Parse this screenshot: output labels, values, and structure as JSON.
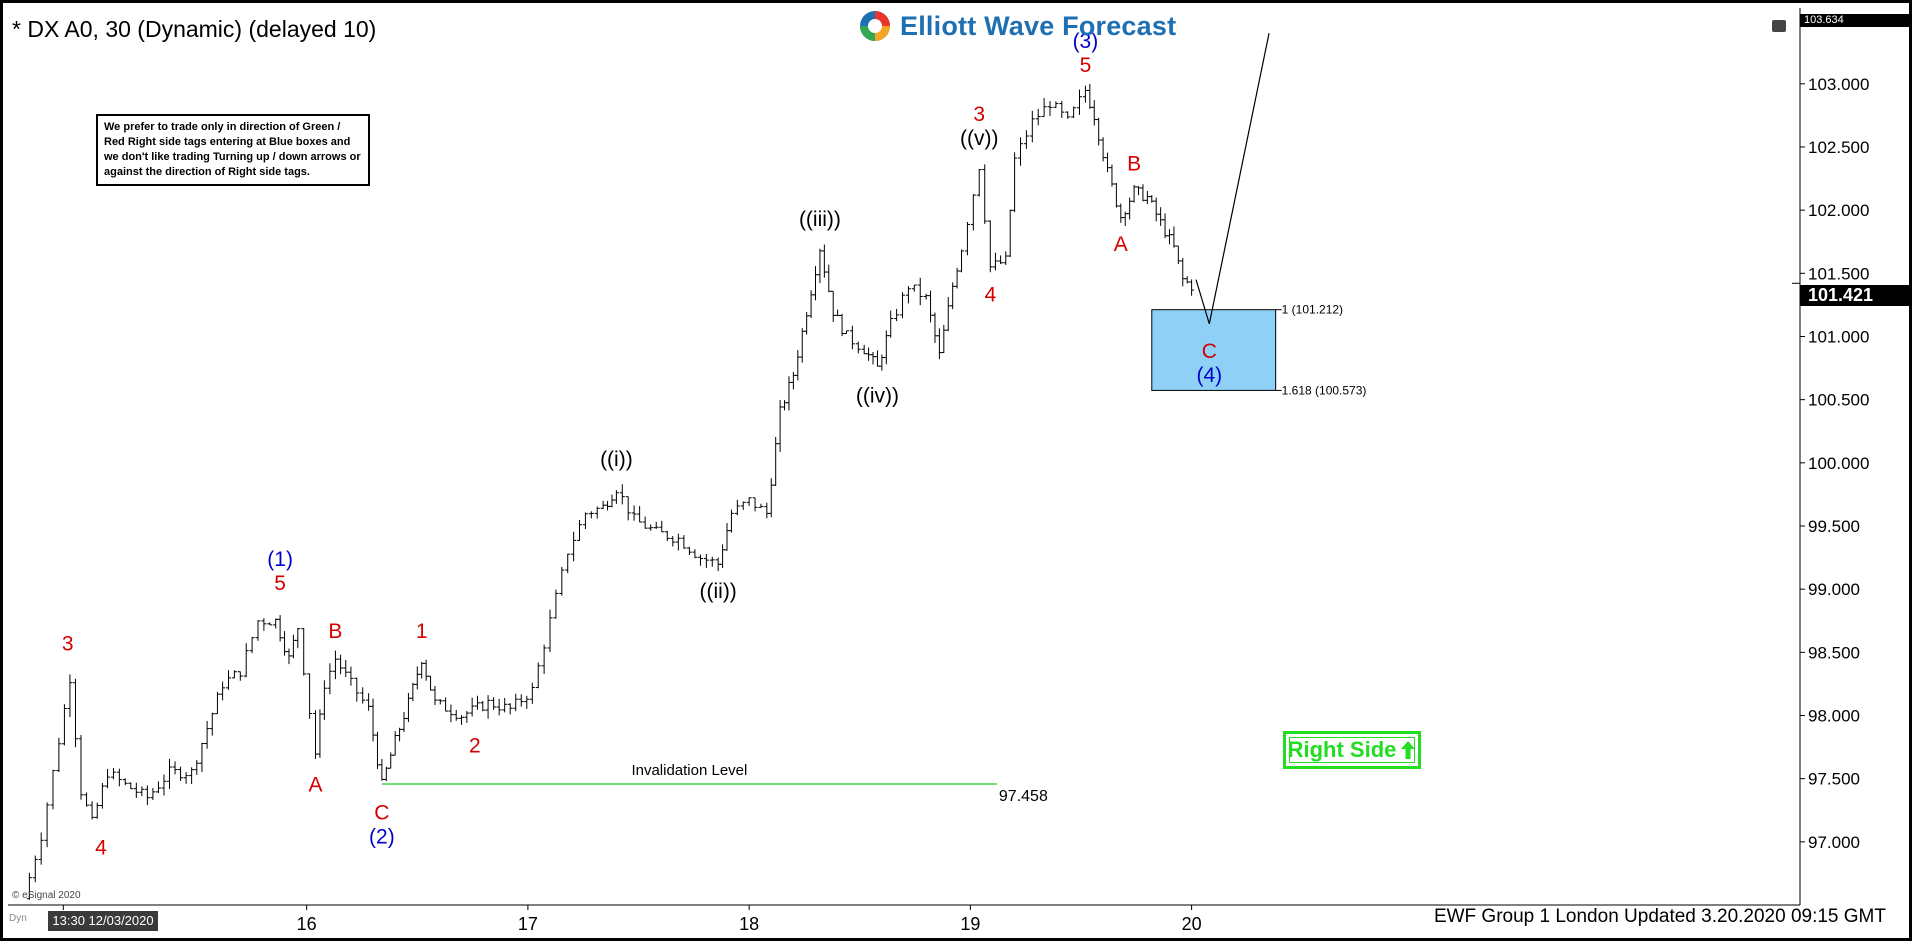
{
  "header": {
    "symbol": "* DX A0, 30 (Dynamic) (delayed 10)",
    "logo_text": "Elliott Wave Forecast"
  },
  "note": "We prefer to trade only in direction of Green / Red Right side tags entering at Blue boxes and we don't like trading Turning up / down arrows or against the direction of Right side tags.",
  "right_side_label": "Right Side",
  "footer": "EWF Group 1 London Updated 3.20.2020 09:15 GMT",
  "timestamp": "13:30 12/03/2020",
  "esignal": "© eSignal 2020",
  "dyn": "Dyn",
  "last_price": "101.421",
  "top_price": "103.634",
  "colors": {
    "wave_red": "#d40000",
    "wave_blue": "#0000cc",
    "wave_black": "#000000",
    "invalidation": "#22cc22",
    "blue_box": "#8fd0f7",
    "right_side": "#22dd22"
  },
  "chart_data": {
    "type": "bar",
    "subtype": "ohlc",
    "xlim": [
      12.55,
      20.65
    ],
    "ylim": [
      96.5,
      103.6
    ],
    "ticks_y": [
      "97.000",
      "97.500",
      "98.000",
      "98.500",
      "99.000",
      "99.500",
      "100.000",
      "100.500",
      "101.000",
      "101.500",
      "102.000",
      "102.500",
      "103.000",
      "103.500"
    ],
    "ticks_x": [
      {
        "label": "13",
        "x": 12.8
      },
      {
        "label": "16",
        "x": 13.9
      },
      {
        "label": "17",
        "x": 14.9
      },
      {
        "label": "18",
        "x": 15.9
      },
      {
        "label": "19",
        "x": 16.9
      },
      {
        "label": "20",
        "x": 17.9
      }
    ],
    "price_path": [
      [
        12.62,
        96.55
      ],
      [
        12.7,
        97.05
      ],
      [
        12.78,
        97.8
      ],
      [
        12.83,
        98.3
      ],
      [
        12.88,
        97.4
      ],
      [
        12.93,
        97.15
      ],
      [
        13.0,
        97.55
      ],
      [
        13.08,
        97.45
      ],
      [
        13.18,
        97.35
      ],
      [
        13.28,
        97.55
      ],
      [
        13.38,
        97.55
      ],
      [
        13.45,
        97.9
      ],
      [
        13.52,
        98.25
      ],
      [
        13.6,
        98.35
      ],
      [
        13.68,
        98.75
      ],
      [
        13.76,
        98.75
      ],
      [
        13.82,
        98.45
      ],
      [
        13.86,
        98.7
      ],
      [
        13.94,
        97.7
      ],
      [
        13.98,
        98.25
      ],
      [
        14.03,
        98.45
      ],
      [
        14.1,
        98.25
      ],
      [
        14.18,
        98.05
      ],
      [
        14.24,
        97.45
      ],
      [
        14.3,
        97.8
      ],
      [
        14.36,
        98.1
      ],
      [
        14.42,
        98.45
      ],
      [
        14.48,
        98.1
      ],
      [
        14.6,
        98.0
      ],
      [
        14.72,
        98.1
      ],
      [
        14.82,
        98.05
      ],
      [
        14.92,
        98.2
      ],
      [
        15.0,
        98.75
      ],
      [
        15.08,
        99.3
      ],
      [
        15.16,
        99.6
      ],
      [
        15.24,
        99.65
      ],
      [
        15.3,
        99.8
      ],
      [
        15.38,
        99.55
      ],
      [
        15.48,
        99.45
      ],
      [
        15.58,
        99.4
      ],
      [
        15.68,
        99.25
      ],
      [
        15.76,
        99.2
      ],
      [
        15.82,
        99.6
      ],
      [
        15.9,
        99.7
      ],
      [
        15.98,
        99.6
      ],
      [
        16.04,
        100.4
      ],
      [
        16.1,
        100.7
      ],
      [
        16.16,
        101.2
      ],
      [
        16.22,
        101.7
      ],
      [
        16.28,
        101.2
      ],
      [
        16.34,
        101.0
      ],
      [
        16.42,
        100.9
      ],
      [
        16.48,
        100.75
      ],
      [
        16.54,
        101.1
      ],
      [
        16.62,
        101.4
      ],
      [
        16.7,
        101.3
      ],
      [
        16.76,
        100.85
      ],
      [
        16.82,
        101.4
      ],
      [
        16.86,
        101.7
      ],
      [
        16.94,
        102.35
      ],
      [
        16.99,
        101.55
      ],
      [
        17.06,
        101.6
      ],
      [
        17.1,
        102.4
      ],
      [
        17.18,
        102.7
      ],
      [
        17.26,
        102.85
      ],
      [
        17.34,
        102.7
      ],
      [
        17.42,
        102.95
      ],
      [
        17.46,
        102.75
      ],
      [
        17.52,
        102.3
      ],
      [
        17.58,
        101.95
      ],
      [
        17.64,
        102.15
      ],
      [
        17.7,
        102.1
      ],
      [
        17.76,
        101.9
      ],
      [
        17.82,
        101.7
      ],
      [
        17.86,
        101.45
      ],
      [
        17.9,
        101.4
      ]
    ],
    "projection": [
      [
        17.92,
        101.45
      ],
      [
        17.98,
        101.1
      ],
      [
        18.25,
        103.4
      ]
    ],
    "blue_box": {
      "x0": 17.72,
      "x1": 18.28,
      "y0": 100.573,
      "y1": 101.212
    },
    "fib_labels": [
      {
        "text": "1 (101.212)",
        "y": 101.212
      },
      {
        "text": "1.618 (100.573)",
        "y": 100.573
      }
    ],
    "invalidation": {
      "level": 97.458,
      "label": "Invalidation Level",
      "value_label": "97.458",
      "x0": 14.24,
      "x1": 17.02
    },
    "wave_labels": [
      {
        "text": "3",
        "x": 12.82,
        "y": 98.42,
        "color": "red",
        "pos": "above"
      },
      {
        "text": "4",
        "x": 12.97,
        "y": 97.12,
        "color": "red",
        "pos": "below"
      },
      {
        "text": "(1)",
        "x": 13.78,
        "y": 98.9,
        "color": "blue",
        "pos": "above2"
      },
      {
        "text": "5",
        "x": 13.78,
        "y": 98.9,
        "color": "red",
        "pos": "above"
      },
      {
        "text": "A",
        "x": 13.94,
        "y": 97.62,
        "color": "red",
        "pos": "below"
      },
      {
        "text": "B",
        "x": 14.03,
        "y": 98.52,
        "color": "red",
        "pos": "above"
      },
      {
        "text": "C",
        "x": 14.24,
        "y": 97.4,
        "color": "red",
        "pos": "below"
      },
      {
        "text": "(2)",
        "x": 14.24,
        "y": 97.4,
        "color": "blue",
        "pos": "below2"
      },
      {
        "text": "1",
        "x": 14.42,
        "y": 98.52,
        "color": "red",
        "pos": "above"
      },
      {
        "text": "2",
        "x": 14.66,
        "y": 97.93,
        "color": "red",
        "pos": "below"
      },
      {
        "text": "((i))",
        "x": 15.3,
        "y": 99.88,
        "color": "black",
        "pos": "above"
      },
      {
        "text": "((ii))",
        "x": 15.76,
        "y": 99.15,
        "color": "black",
        "pos": "below"
      },
      {
        "text": "((iii))",
        "x": 16.22,
        "y": 101.78,
        "color": "black",
        "pos": "above"
      },
      {
        "text": "((iv))",
        "x": 16.48,
        "y": 100.7,
        "color": "black",
        "pos": "below"
      },
      {
        "text": "((v))",
        "x": 16.94,
        "y": 102.42,
        "color": "black",
        "pos": "above"
      },
      {
        "text": "3",
        "x": 16.94,
        "y": 102.42,
        "color": "red",
        "pos": "above2"
      },
      {
        "text": "4",
        "x": 16.99,
        "y": 101.5,
        "color": "red",
        "pos": "below"
      },
      {
        "text": "5",
        "x": 17.42,
        "y": 103.0,
        "color": "red",
        "pos": "above"
      },
      {
        "text": "(3)",
        "x": 17.42,
        "y": 103.0,
        "color": "blue",
        "pos": "above2"
      },
      {
        "text": "A",
        "x": 17.58,
        "y": 101.9,
        "color": "red",
        "pos": "below"
      },
      {
        "text": "B",
        "x": 17.64,
        "y": 102.22,
        "color": "red",
        "pos": "above"
      },
      {
        "text": "C",
        "x": 17.98,
        "y": 101.05,
        "color": "red",
        "pos": "below"
      },
      {
        "text": "(4)",
        "x": 17.98,
        "y": 101.05,
        "color": "blue",
        "pos": "below2"
      }
    ]
  }
}
